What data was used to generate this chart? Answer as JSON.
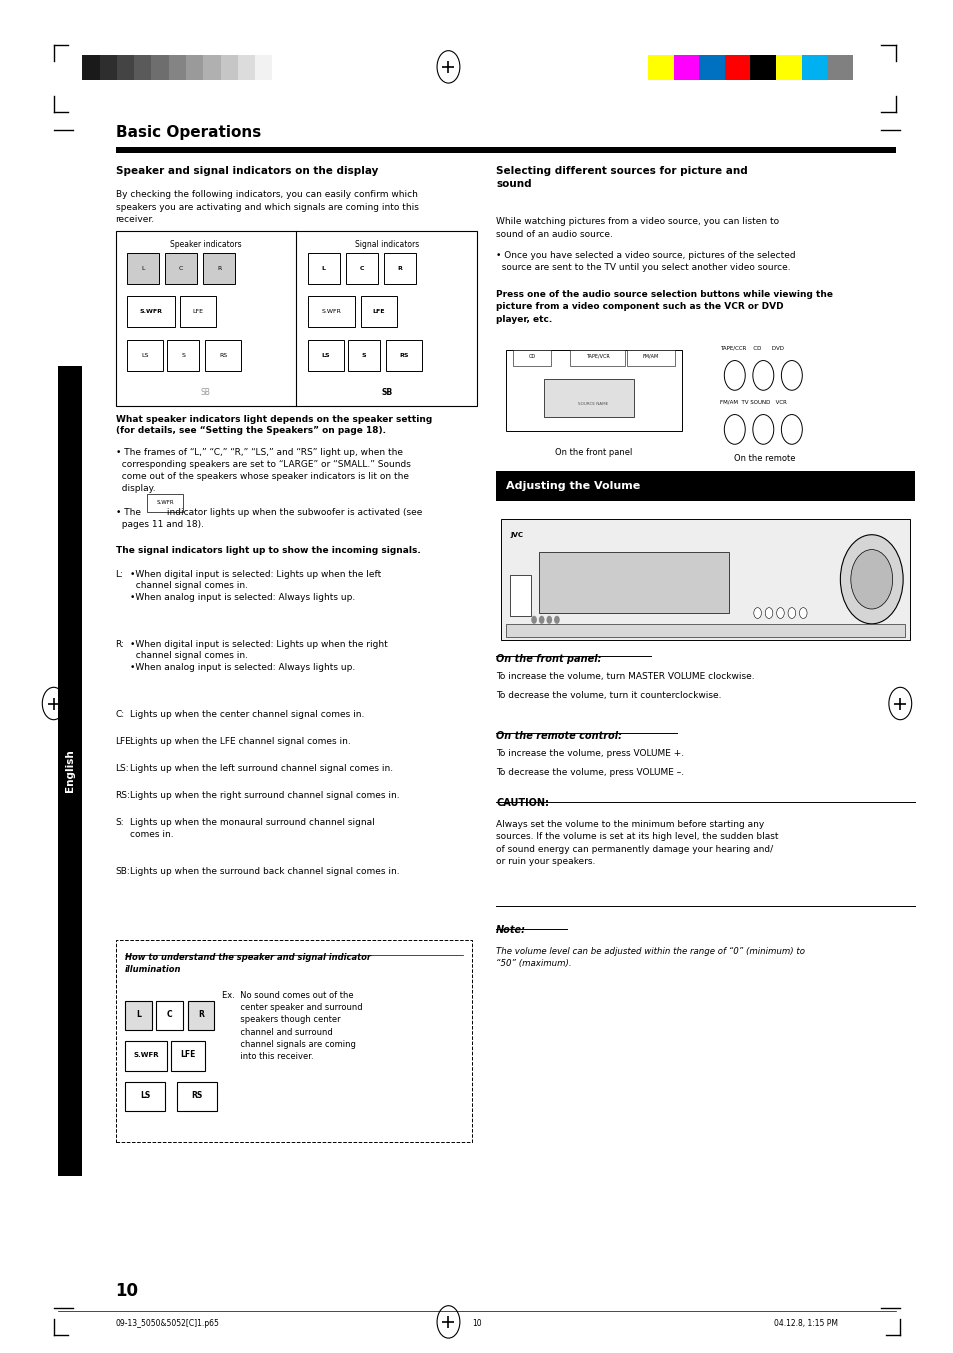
{
  "page_bg": "#ffffff",
  "page_width": 9.54,
  "page_height": 13.53,
  "dpi": 100,
  "grayscale_colors": [
    "#1a1a1a",
    "#2e2e2e",
    "#444444",
    "#5a5a5a",
    "#6e6e6e",
    "#848484",
    "#9a9a9a",
    "#b0b0b0",
    "#c6c6c6",
    "#dcdcdc",
    "#f2f2f2"
  ],
  "color_bar_colors": [
    "#ffff00",
    "#ff00ff",
    "#0070c0",
    "#ff0000",
    "#000000",
    "#ffff00",
    "#00b0f0",
    "#808080"
  ],
  "sidebar_text": "English",
  "section_title": "Basic Operations",
  "adj_volume_title": "Adjusting the Volume",
  "page_number": "10",
  "footer_left": "09-13_5050&5052[C]1.p65",
  "footer_center": "10",
  "footer_right": "04.12.8, 1:15 PM"
}
